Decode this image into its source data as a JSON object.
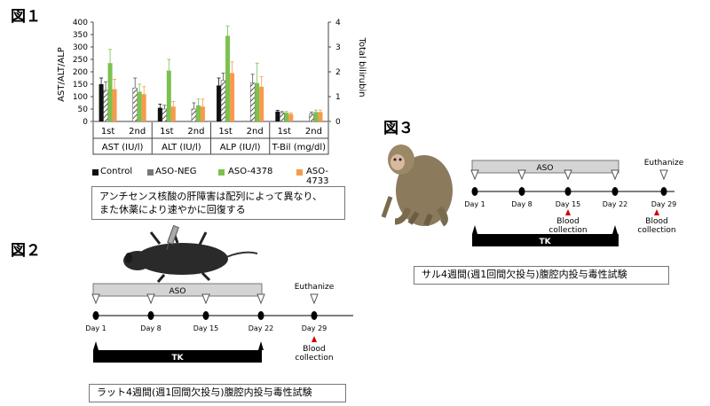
{
  "fig1": {
    "label": "図１",
    "caption_lines": [
      "アンチセンス核酸の肝障害は配列によって異なり、",
      "また休薬により速やかに回復する"
    ]
  },
  "fig2": {
    "label": "図２",
    "caption": "ラット4週間(週1回間欠投与)腹腔内投与毒性試験",
    "aso": "ASO",
    "tk": "TK",
    "euthanize": "Euthanize",
    "days": [
      "Day 1",
      "Day 8",
      "Day 15",
      "Day 22",
      "Day 29"
    ],
    "blood_collection_lines": [
      "Blood",
      "collection"
    ]
  },
  "fig3": {
    "label": "図３",
    "caption": "サル4週間(週1回間欠投与)腹腔内投与毒性試験",
    "aso": "ASO",
    "tk": "TK",
    "euthanize": "Euthanize",
    "days": [
      "Day 1",
      "Day 8",
      "Day 15",
      "Day 22",
      "Day 29"
    ],
    "blood_collection_lines": [
      "Blood",
      "collection"
    ]
  },
  "chart_data": {
    "type": "bar",
    "ylabel": "AST/ALT/ALP",
    "y2label": "Total bilirubin",
    "ylim": [
      0,
      400
    ],
    "y2lim": [
      0,
      4
    ],
    "yticks": [
      "0",
      "50",
      "100",
      "150",
      "200",
      "250",
      "300",
      "350",
      "400"
    ],
    "y2ticks": [
      "0",
      "1",
      "2",
      "3",
      "4"
    ],
    "sub_categories": [
      "1st",
      "2nd",
      "1st",
      "2nd",
      "1st",
      "2nd",
      "1st",
      "2nd"
    ],
    "groups": [
      "AST (IU/l)",
      "ALT (IU/l)",
      "ALP (IU/l)",
      "T-Bil (mg/dl)"
    ],
    "series": [
      {
        "name": "Control",
        "values": [
          150,
          0,
          55,
          0,
          145,
          0,
          40,
          0
        ],
        "errors": [
          25,
          0,
          15,
          0,
          30,
          0,
          5,
          0
        ]
      },
      {
        "name": "ASO-NEG",
        "values": [
          125,
          135,
          50,
          50,
          165,
          155,
          35,
          30
        ],
        "errors": [
          35,
          40,
          15,
          25,
          30,
          35,
          5,
          8
        ]
      },
      {
        "name": "ASO-4378",
        "values": [
          235,
          120,
          205,
          65,
          345,
          155,
          35,
          38
        ],
        "errors": [
          55,
          30,
          45,
          25,
          40,
          80,
          5,
          8
        ]
      },
      {
        "name": "ASO-4733",
        "values": [
          130,
          110,
          60,
          60,
          195,
          140,
          30,
          38
        ],
        "errors": [
          40,
          30,
          20,
          30,
          45,
          40,
          5,
          8
        ]
      }
    ],
    "colors": [
      "#111111",
      "#7a7a7a",
      "#7cc14e",
      "#f79a4c"
    ]
  }
}
